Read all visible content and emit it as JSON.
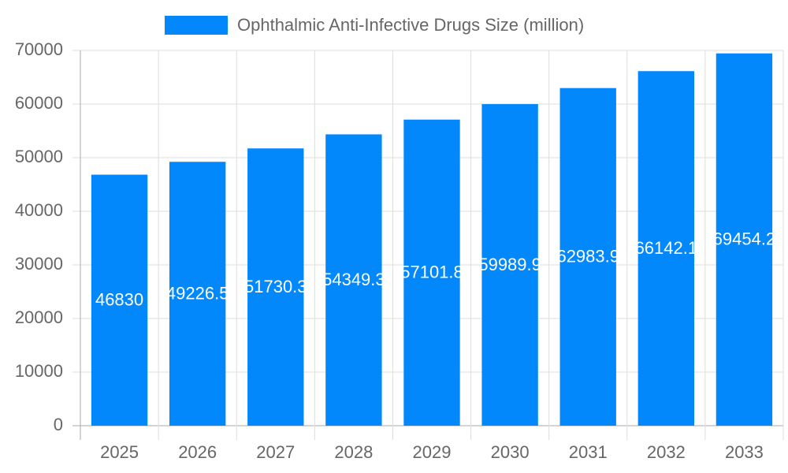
{
  "chart_data": {
    "type": "bar",
    "legend_label": "Ophthalmic Anti-Infective Drugs Size (million)",
    "legend_position": "top",
    "categories": [
      "2025",
      "2026",
      "2027",
      "2028",
      "2029",
      "2030",
      "2031",
      "2032",
      "2033"
    ],
    "values": [
      46830,
      49226.5,
      51730.3,
      54349.3,
      57101.8,
      59989.9,
      62983.9,
      66142.1,
      69454.2
    ],
    "color": "#0388fc",
    "ylim": [
      0,
      70000
    ],
    "yticks": [
      0,
      10000,
      20000,
      30000,
      40000,
      50000,
      60000,
      70000
    ],
    "grid": true
  }
}
